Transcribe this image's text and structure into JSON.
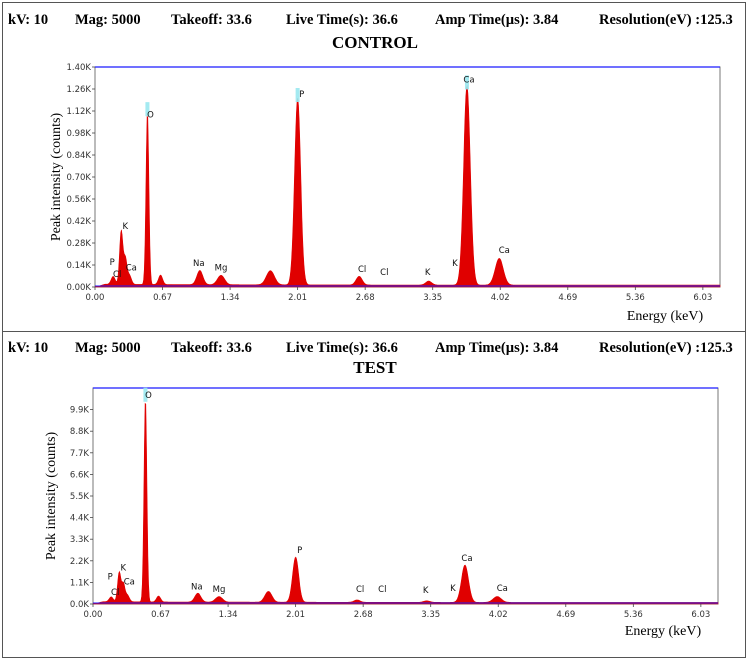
{
  "header": {
    "kv": "kV: 10",
    "mag": "Mag: 5000",
    "takeoff": "Takeoff: 33.6",
    "live_time": "Live Time(s): 36.6",
    "amp_time": "Amp Time(µs): 3.84",
    "resolution": "Resolution(eV) :125.3"
  },
  "colors": {
    "fill": "#e00000",
    "baseline": "#1a1aff",
    "highlight": "#9ae8f0",
    "plot_border": "#777777"
  },
  "chart_data": [
    {
      "type": "area",
      "title": "CONTROL",
      "xlabel": "Energy (keV)",
      "ylabel": "Peak intensity (counts)",
      "xlim": [
        0,
        6.2
      ],
      "ylim": [
        0,
        1400
      ],
      "x_ticks": [
        0.0,
        0.67,
        1.34,
        2.01,
        2.68,
        3.35,
        4.02,
        4.69,
        5.36,
        6.03
      ],
      "x_tick_labels": [
        "0.00",
        "0.67",
        "1.34",
        "2.01",
        "2.68",
        "3.35",
        "4.02",
        "4.69",
        "5.36",
        "6.03"
      ],
      "y_ticks": [
        0,
        140,
        280,
        420,
        560,
        700,
        840,
        980,
        1120,
        1260,
        1400
      ],
      "y_tick_labels": [
        "0.00K",
        "0.14K",
        "0.28K",
        "0.42K",
        "0.56K",
        "0.70K",
        "0.84K",
        "0.98K",
        "1.12K",
        "1.26K",
        "1.40K"
      ],
      "background": 12,
      "peaks": [
        {
          "x": 0.18,
          "y": 50,
          "w": 0.02
        },
        {
          "x": 0.26,
          "y": 340,
          "w": 0.016
        },
        {
          "x": 0.3,
          "y": 160,
          "w": 0.016
        },
        {
          "x": 0.34,
          "y": 60,
          "w": 0.02
        },
        {
          "x": 0.52,
          "y": 1100,
          "w": 0.014
        },
        {
          "x": 0.65,
          "y": 60,
          "w": 0.02
        },
        {
          "x": 1.04,
          "y": 90,
          "w": 0.03
        },
        {
          "x": 1.25,
          "y": 60,
          "w": 0.035
        },
        {
          "x": 1.74,
          "y": 90,
          "w": 0.04
        },
        {
          "x": 2.01,
          "y": 1190,
          "w": 0.03
        },
        {
          "x": 2.62,
          "y": 55,
          "w": 0.03
        },
        {
          "x": 3.31,
          "y": 25,
          "w": 0.03
        },
        {
          "x": 3.69,
          "y": 1270,
          "w": 0.033
        },
        {
          "x": 4.01,
          "y": 170,
          "w": 0.04
        }
      ],
      "annotations": [
        {
          "label": "P",
          "x": 0.17,
          "y": 140
        },
        {
          "label": "Cl",
          "x": 0.22,
          "y": 65
        },
        {
          "label": "K",
          "x": 0.3,
          "y": 370
        },
        {
          "label": "Ca",
          "x": 0.36,
          "y": 105
        },
        {
          "label": "O",
          "x": 0.55,
          "y": 1080
        },
        {
          "label": "Na",
          "x": 1.03,
          "y": 135
        },
        {
          "label": "Mg",
          "x": 1.25,
          "y": 105
        },
        {
          "label": "P",
          "x": 2.05,
          "y": 1210
        },
        {
          "label": "Cl",
          "x": 2.65,
          "y": 95
        },
        {
          "label": "Cl",
          "x": 2.87,
          "y": 75
        },
        {
          "label": "K",
          "x": 3.3,
          "y": 75
        },
        {
          "label": "K",
          "x": 3.57,
          "y": 135
        },
        {
          "label": "Ca",
          "x": 3.71,
          "y": 1300
        },
        {
          "label": "Ca",
          "x": 4.06,
          "y": 215
        }
      ]
    },
    {
      "type": "area",
      "title": "TEST",
      "xlabel": "Energy (keV)",
      "ylabel": "Peak intensity (counts)",
      "xlim": [
        0,
        6.2
      ],
      "ylim": [
        0,
        11000
      ],
      "x_ticks": [
        0.0,
        0.67,
        1.34,
        2.01,
        2.68,
        3.35,
        4.02,
        4.69,
        5.36,
        6.03
      ],
      "x_tick_labels": [
        "0.00",
        "0.67",
        "1.34",
        "2.01",
        "2.68",
        "3.35",
        "4.02",
        "4.69",
        "5.36",
        "6.03"
      ],
      "y_ticks": [
        0,
        1100,
        2200,
        3300,
        4400,
        5500,
        6600,
        7700,
        8800,
        9900
      ],
      "y_tick_labels": [
        "0.0K",
        "1.1K",
        "2.2K",
        "3.3K",
        "4.4K",
        "5.5K",
        "6.6K",
        "7.7K",
        "8.8K",
        "9.9K"
      ],
      "background": 80,
      "peaks": [
        {
          "x": 0.18,
          "y": 250,
          "w": 0.02
        },
        {
          "x": 0.26,
          "y": 1500,
          "w": 0.016
        },
        {
          "x": 0.3,
          "y": 900,
          "w": 0.016
        },
        {
          "x": 0.34,
          "y": 350,
          "w": 0.02
        },
        {
          "x": 0.52,
          "y": 10400,
          "w": 0.014
        },
        {
          "x": 0.65,
          "y": 300,
          "w": 0.02
        },
        {
          "x": 1.04,
          "y": 450,
          "w": 0.03
        },
        {
          "x": 1.25,
          "y": 280,
          "w": 0.035
        },
        {
          "x": 1.74,
          "y": 550,
          "w": 0.035
        },
        {
          "x": 2.01,
          "y": 2300,
          "w": 0.03
        },
        {
          "x": 2.62,
          "y": 120,
          "w": 0.03
        },
        {
          "x": 3.31,
          "y": 80,
          "w": 0.03
        },
        {
          "x": 3.69,
          "y": 1900,
          "w": 0.035
        },
        {
          "x": 4.01,
          "y": 300,
          "w": 0.04
        }
      ],
      "annotations": [
        {
          "label": "P",
          "x": 0.17,
          "y": 1250
        },
        {
          "label": "Cl",
          "x": 0.22,
          "y": 450
        },
        {
          "label": "K",
          "x": 0.3,
          "y": 1700
        },
        {
          "label": "Ca",
          "x": 0.36,
          "y": 1000
        },
        {
          "label": "O",
          "x": 0.55,
          "y": 10500
        },
        {
          "label": "Na",
          "x": 1.03,
          "y": 750
        },
        {
          "label": "Mg",
          "x": 1.25,
          "y": 600
        },
        {
          "label": "P",
          "x": 2.05,
          "y": 2600
        },
        {
          "label": "Cl",
          "x": 2.65,
          "y": 600
        },
        {
          "label": "Cl",
          "x": 2.87,
          "y": 600
        },
        {
          "label": "K",
          "x": 3.3,
          "y": 550
        },
        {
          "label": "K",
          "x": 3.57,
          "y": 650
        },
        {
          "label": "Ca",
          "x": 3.71,
          "y": 2200
        },
        {
          "label": "Ca",
          "x": 4.06,
          "y": 650
        }
      ]
    }
  ]
}
